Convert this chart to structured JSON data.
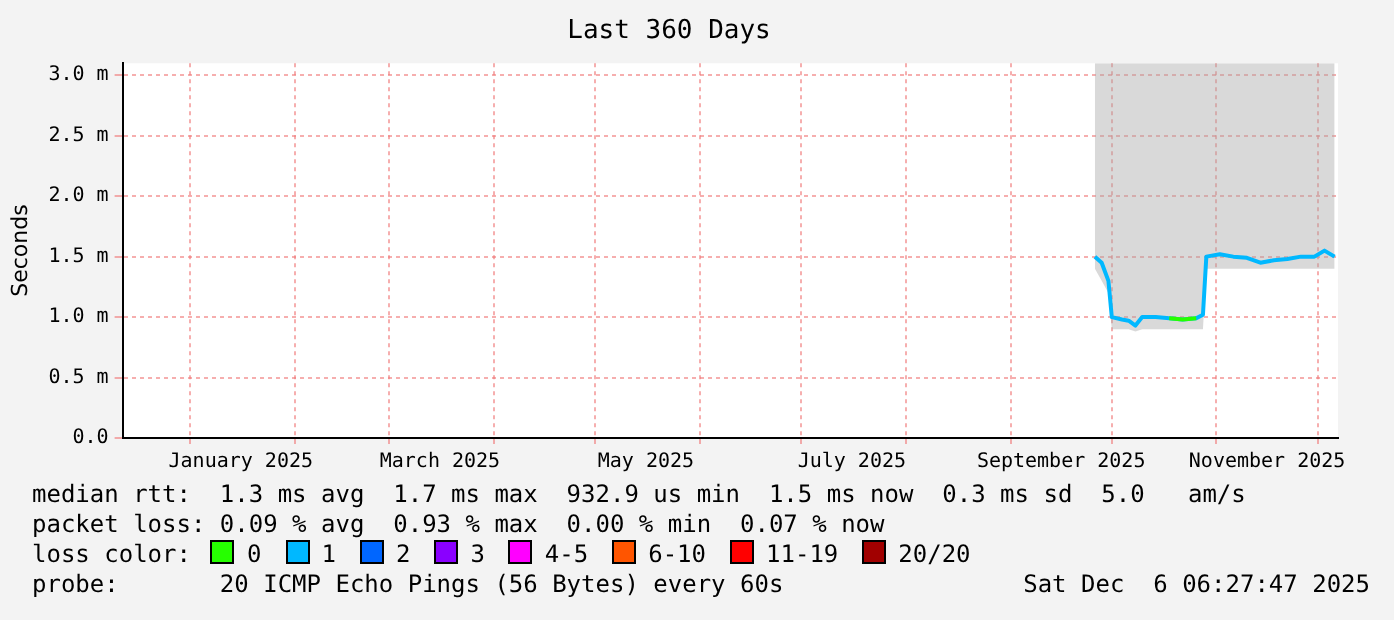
{
  "chart_data": {
    "type": "line",
    "title": "Last 360 Days",
    "ylabel": "Seconds",
    "xlim": [
      "2024-12-12",
      "2025-12-07"
    ],
    "xticks": [
      {
        "value": "2025-01-01",
        "label": null
      },
      {
        "value": "2025-01-16",
        "label": "January 2025"
      },
      {
        "value": "2025-02-01",
        "label": null
      },
      {
        "value": "2025-03-01",
        "label": null
      },
      {
        "value": "2025-03-16",
        "label": "March 2025"
      },
      {
        "value": "2025-04-01",
        "label": null
      },
      {
        "value": "2025-05-01",
        "label": null
      },
      {
        "value": "2025-05-16",
        "label": "May 2025"
      },
      {
        "value": "2025-06-01",
        "label": null
      },
      {
        "value": "2025-07-01",
        "label": null
      },
      {
        "value": "2025-07-16",
        "label": "July 2025"
      },
      {
        "value": "2025-08-01",
        "label": null
      },
      {
        "value": "2025-09-01",
        "label": null
      },
      {
        "value": "2025-09-16",
        "label": "September 2025"
      },
      {
        "value": "2025-10-01",
        "label": null
      },
      {
        "value": "2025-11-01",
        "label": null
      },
      {
        "value": "2025-11-16",
        "label": "November 2025"
      },
      {
        "value": "2025-12-01",
        "label": null
      }
    ],
    "ylim": [
      0,
      3.1
    ],
    "yticks": [
      {
        "value": 0,
        "label": "0.0"
      },
      {
        "value": 0.5,
        "label": "0.5 m"
      },
      {
        "value": 1,
        "label": "1.0 m"
      },
      {
        "value": 1.5,
        "label": "1.5 m"
      },
      {
        "value": 2,
        "label": "2.0 m"
      },
      {
        "value": 2.5,
        "label": "2.5 m"
      },
      {
        "value": 3,
        "label": "3.0 m"
      }
    ],
    "grid": true,
    "legend": "bottom",
    "marker": "none",
    "line_style": "solid",
    "series": [
      {
        "name": "0",
        "color": "#26ff00",
        "x": [
          "2025-10-18",
          "2025-10-22",
          "2025-10-26"
        ],
        "values": [
          0.99,
          0.98,
          0.99
        ]
      },
      {
        "name": "1",
        "color": "#00b8ff",
        "x": [
          "2025-09-26",
          "2025-09-28",
          "2025-09-30",
          "2025-10-01",
          "2025-10-04",
          "2025-10-06",
          "2025-10-08",
          "2025-10-10",
          "2025-10-14",
          "2025-10-18",
          "2025-10-22",
          "2025-10-26",
          "2025-10-28",
          "2025-10-29",
          "2025-11-02",
          "2025-11-06",
          "2025-11-10",
          "2025-11-14",
          "2025-11-18",
          "2025-11-22",
          "2025-11-26",
          "2025-11-30",
          "2025-12-03",
          "2025-12-06"
        ],
        "values": [
          1.5,
          1.45,
          1.3,
          1.0,
          0.98,
          0.97,
          0.93,
          1.0,
          1.0,
          0.99,
          0.98,
          0.99,
          1.02,
          1.5,
          1.52,
          1.5,
          1.49,
          1.45,
          1.47,
          1.48,
          1.5,
          1.5,
          1.55,
          1.5
        ],
        "lower": [
          1.4,
          1.3,
          1.2,
          0.9,
          0.9,
          0.9,
          0.88,
          0.9,
          0.9,
          0.9,
          0.9,
          0.9,
          0.9,
          1.4,
          1.4,
          1.4,
          1.4,
          1.4,
          1.4,
          1.4,
          1.4,
          1.4,
          1.4,
          1.4
        ],
        "upper": [
          3.1,
          3.1,
          3.1,
          3.1,
          3.1,
          3.1,
          3.1,
          3.1,
          3.1,
          3.1,
          3.1,
          3.1,
          3.1,
          3.1,
          3.1,
          3.1,
          3.1,
          3.1,
          3.1,
          3.1,
          3.1,
          3.1,
          3.1,
          3.1
        ]
      },
      {
        "name": "2",
        "color": "#0066ff"
      },
      {
        "name": "3",
        "color": "#8a00ff"
      },
      {
        "name": "4-5",
        "color": "#ff00ff"
      },
      {
        "name": "6-10",
        "color": "#ff5500"
      },
      {
        "name": "11-19",
        "color": "#ff0000"
      },
      {
        "name": "20/20",
        "color": "#a10000"
      }
    ],
    "annotations": [
      "median rtt:  1.3 ms avg  1.7 ms max  932.9 us min  1.5 ms now  0.3 ms sd  5.0   am/s",
      "packet loss: 0.09 % avg  0.93 % max  0.00 % min  0.07 % now",
      "loss color:",
      "probe:       20 ICMP Echo Pings (56 Bytes) every 60s",
      "Sat Dec  6 06:27:47 2025"
    ]
  }
}
